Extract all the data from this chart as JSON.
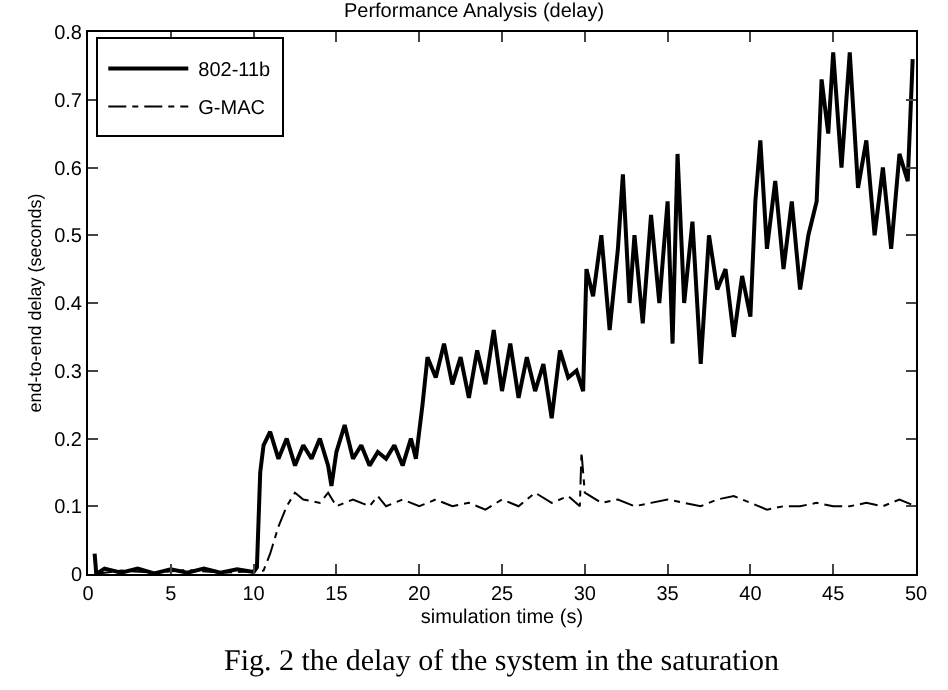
{
  "chart_data": {
    "type": "line",
    "title": "Performance Analysis (delay)",
    "xlabel": "simulation time (s)",
    "ylabel": "end-to-end delay (seconds)",
    "annotations": [
      "Fig. 2 the delay of the system in the saturation"
    ],
    "xlim": [
      0,
      50
    ],
    "xticks": [
      0,
      5,
      10,
      15,
      20,
      25,
      30,
      35,
      40,
      45,
      50
    ],
    "ylim": [
      0,
      0.8
    ],
    "yticks": [
      0,
      0.1,
      0.2,
      0.3,
      0.4,
      0.5,
      0.6,
      0.7,
      0.8
    ],
    "grid": false,
    "legend": "top left",
    "marker": "none",
    "series": [
      {
        "name": "802-11b",
        "color": "#000000",
        "line_style": "solid",
        "x": [
          0.4,
          0.5,
          1,
          2,
          3,
          4,
          5,
          6,
          7,
          8,
          9,
          10,
          10.2,
          10.4,
          10.6,
          11,
          11.5,
          12,
          12.5,
          13,
          13.5,
          14,
          14.5,
          14.7,
          15,
          15.5,
          16,
          16.5,
          17,
          17.5,
          18,
          18.5,
          19,
          19.5,
          19.8,
          20.2,
          20.5,
          21,
          21.5,
          22,
          22.5,
          23,
          23.5,
          24,
          24.5,
          25,
          25.5,
          26,
          26.5,
          27,
          27.5,
          28,
          28.5,
          29,
          29.5,
          29.9,
          30.1,
          30.5,
          31,
          31.5,
          32,
          32.3,
          32.7,
          33,
          33.5,
          34,
          34.5,
          35,
          35.3,
          35.6,
          36,
          36.5,
          37,
          37.5,
          38,
          38.5,
          39,
          39.5,
          40,
          40.3,
          40.6,
          41,
          41.5,
          42,
          42.5,
          43,
          43.5,
          44,
          44.3,
          44.7,
          45,
          45.5,
          46,
          46.5,
          47,
          47.5,
          48,
          48.5,
          49,
          49.5,
          49.8
        ],
        "values": [
          0.03,
          0,
          0.008,
          0.002,
          0.008,
          0.001,
          0.007,
          0.002,
          0.008,
          0.002,
          0.007,
          0.003,
          0.01,
          0.15,
          0.19,
          0.21,
          0.17,
          0.2,
          0.16,
          0.19,
          0.17,
          0.2,
          0.16,
          0.13,
          0.18,
          0.22,
          0.17,
          0.19,
          0.16,
          0.18,
          0.17,
          0.19,
          0.16,
          0.2,
          0.17,
          0.25,
          0.32,
          0.29,
          0.34,
          0.28,
          0.32,
          0.26,
          0.33,
          0.28,
          0.36,
          0.27,
          0.34,
          0.26,
          0.32,
          0.27,
          0.31,
          0.23,
          0.33,
          0.29,
          0.3,
          0.27,
          0.45,
          0.41,
          0.5,
          0.36,
          0.48,
          0.59,
          0.4,
          0.5,
          0.37,
          0.53,
          0.4,
          0.55,
          0.34,
          0.62,
          0.4,
          0.52,
          0.31,
          0.5,
          0.42,
          0.45,
          0.35,
          0.44,
          0.38,
          0.55,
          0.64,
          0.48,
          0.58,
          0.45,
          0.55,
          0.42,
          0.5,
          0.55,
          0.73,
          0.65,
          0.77,
          0.6,
          0.77,
          0.57,
          0.64,
          0.5,
          0.6,
          0.48,
          0.62,
          0.58,
          0.76
        ]
      },
      {
        "name": "G-MAC",
        "color": "#000000",
        "line_style": "dashed",
        "x": [
          0.4,
          2,
          4,
          6,
          8,
          10,
          10.6,
          11,
          11.5,
          12,
          12.5,
          13,
          14,
          14.5,
          15,
          16,
          17,
          17.5,
          18,
          19,
          20,
          21,
          22,
          23,
          24,
          25,
          26,
          27,
          28,
          29,
          29.7,
          29.8,
          30,
          31,
          32,
          33,
          34,
          35,
          36,
          37,
          38,
          39,
          40,
          41,
          42,
          43,
          44,
          45,
          46,
          47,
          48,
          49,
          50
        ],
        "values": [
          0,
          0.005,
          0.002,
          0.006,
          0.002,
          0.004,
          0.005,
          0.03,
          0.07,
          0.1,
          0.12,
          0.11,
          0.105,
          0.12,
          0.1,
          0.11,
          0.1,
          0.115,
          0.1,
          0.11,
          0.1,
          0.11,
          0.1,
          0.105,
          0.095,
          0.11,
          0.1,
          0.12,
          0.105,
          0.115,
          0.1,
          0.18,
          0.12,
          0.105,
          0.11,
          0.1,
          0.105,
          0.11,
          0.105,
          0.1,
          0.11,
          0.115,
          0.105,
          0.095,
          0.1,
          0.1,
          0.105,
          0.1,
          0.1,
          0.105,
          0.1,
          0.11,
          0.1
        ]
      }
    ]
  }
}
